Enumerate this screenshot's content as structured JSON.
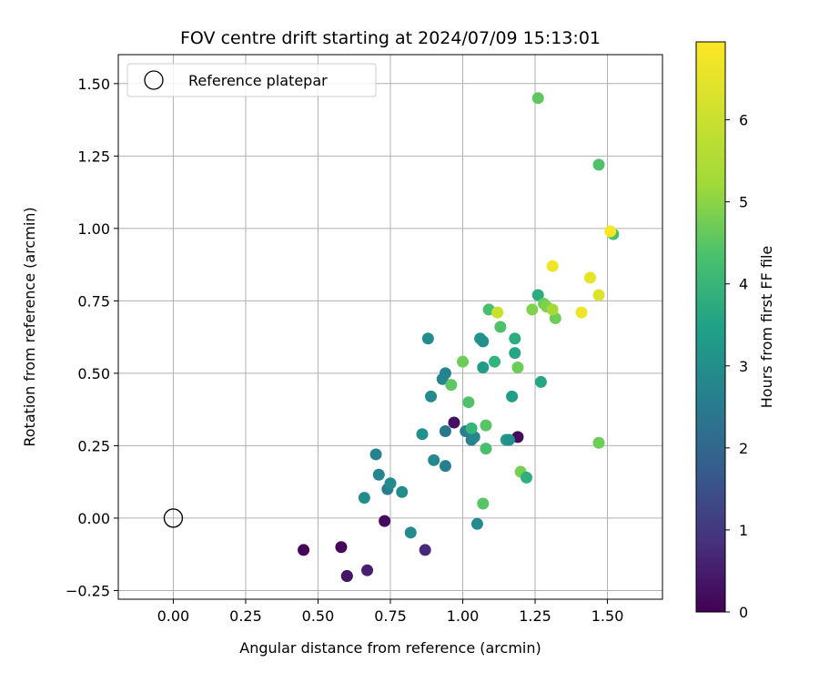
{
  "chart_data": {
    "type": "scatter",
    "title": "FOV centre drift starting at 2024/07/09 15:13:01",
    "xlabel": "Angular distance from reference (arcmin)",
    "ylabel": "Rotation from reference (arcmin)",
    "xlim": [
      -0.19,
      1.69
    ],
    "ylim": [
      -0.28,
      1.6
    ],
    "xticks": [
      0.0,
      0.25,
      0.5,
      0.75,
      1.0,
      1.25,
      1.5
    ],
    "xtick_labels": [
      "0.00",
      "0.25",
      "0.50",
      "0.75",
      "1.00",
      "1.25",
      "1.50"
    ],
    "yticks": [
      -0.25,
      0.0,
      0.25,
      0.5,
      0.75,
      1.0,
      1.25,
      1.5
    ],
    "ytick_labels": [
      "−0.25",
      "0.00",
      "0.25",
      "0.50",
      "0.75",
      "1.00",
      "1.25",
      "1.50"
    ],
    "grid": true,
    "legend": {
      "label": "Reference platepar",
      "placement": "top-left",
      "marker": "open-circle"
    },
    "reference_point": {
      "x": 0.0,
      "y": 0.0
    },
    "colorbar": {
      "label": "Hours from first FF file",
      "colormap": "viridis",
      "range": [
        0,
        6.95
      ],
      "ticks": [
        0,
        1,
        2,
        3,
        4,
        5,
        6
      ],
      "tick_labels": [
        "0",
        "1",
        "2",
        "3",
        "4",
        "5",
        "6"
      ]
    },
    "series": [
      {
        "x": [
          0.45,
          0.58,
          0.6,
          0.6,
          0.67,
          0.73,
          0.87,
          0.97,
          1.19,
          0.66,
          0.7,
          0.71,
          0.74,
          0.75,
          0.79,
          0.82,
          0.9,
          0.94,
          0.94,
          1.01,
          1.03,
          1.04,
          1.05,
          0.86,
          0.89,
          0.88,
          0.93,
          0.94,
          1.06,
          1.07,
          1.07,
          1.15,
          1.16,
          1.17,
          1.18,
          1.18,
          1.26,
          1.27,
          1.09,
          1.11,
          1.13,
          1.02,
          1.0,
          0.96,
          1.03,
          1.08,
          1.07,
          1.08,
          1.19,
          1.2,
          1.22,
          1.24,
          1.28,
          1.29,
          1.32,
          1.26,
          1.47,
          1.47,
          1.52,
          1.12,
          1.31,
          1.31,
          1.41,
          1.44,
          1.47,
          1.51
        ],
        "y": [
          -0.11,
          -0.1,
          -0.2,
          -0.2,
          -0.18,
          -0.01,
          -0.11,
          0.33,
          0.28,
          0.07,
          0.22,
          0.15,
          0.1,
          0.12,
          0.09,
          -0.05,
          0.2,
          0.18,
          0.3,
          0.3,
          0.27,
          0.28,
          -0.02,
          0.29,
          0.42,
          0.62,
          0.48,
          0.5,
          0.62,
          0.61,
          0.52,
          0.27,
          0.27,
          0.42,
          0.57,
          0.62,
          0.77,
          0.47,
          0.72,
          0.54,
          0.66,
          0.4,
          0.54,
          0.46,
          0.31,
          0.32,
          0.05,
          0.24,
          0.52,
          0.16,
          0.14,
          0.72,
          0.74,
          0.73,
          0.69,
          1.45,
          1.22,
          0.26,
          0.98,
          0.71,
          0.87,
          0.72,
          0.71,
          0.83,
          0.77,
          0.99
        ],
        "hours": [
          0.1,
          0.1,
          0.3,
          0.4,
          0.6,
          0.2,
          0.8,
          0.3,
          0.2,
          3.4,
          3.1,
          3.2,
          2.9,
          3.3,
          3.4,
          3.3,
          3.3,
          3.0,
          2.8,
          3.0,
          3.1,
          3.2,
          3.3,
          3.5,
          3.3,
          3.4,
          3.2,
          3.1,
          3.6,
          3.5,
          3.8,
          3.9,
          3.5,
          3.9,
          4.1,
          4.3,
          4.3,
          4.1,
          4.9,
          4.5,
          5.0,
          5.0,
          5.4,
          5.2,
          4.6,
          5.1,
          5.1,
          4.9,
          5.4,
          5.5,
          4.4,
          5.6,
          5.4,
          5.6,
          5.4,
          5.2,
          5.0,
          5.4,
          4.9,
          6.4,
          6.8,
          6.0,
          6.8,
          6.7,
          6.6,
          6.9
        ]
      }
    ]
  }
}
